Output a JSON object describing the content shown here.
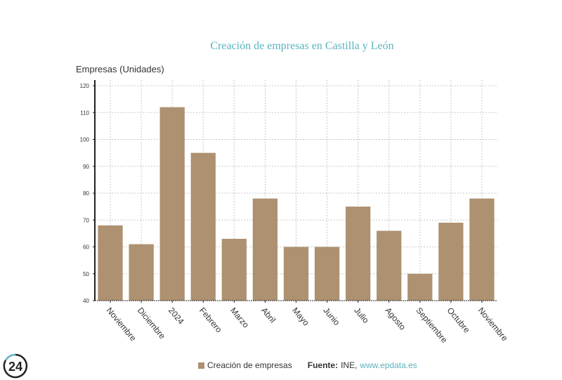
{
  "chart_data": {
    "type": "bar",
    "title": "Creación de empresas en Castilla y León",
    "xlabel": "",
    "ylabel": "Empresas (Unidades)",
    "ylim": [
      40,
      120
    ],
    "yticks": [
      40,
      50,
      60,
      70,
      80,
      90,
      100,
      110,
      120
    ],
    "grid": true,
    "categories": [
      "Noviembre",
      "Diciembre",
      "2024",
      "Febrero",
      "Marzo",
      "Abril",
      "Mayo",
      "Junio",
      "Julio",
      "Agosto",
      "Septiembre",
      "Octubre",
      "Noviembre"
    ],
    "series": [
      {
        "name": "Creación de empresas",
        "color": "#ad9170",
        "values": [
          68,
          61,
          112,
          95,
          63,
          78,
          60,
          60,
          75,
          66,
          50,
          69,
          78
        ]
      }
    ],
    "legend_position": "bottom"
  },
  "legend": {
    "series_label": "Creación de empresas",
    "source_label": "Fuente:",
    "source_text": "INE,",
    "source_link": "www.epdata.es"
  },
  "logo": {
    "text": "24"
  },
  "colors": {
    "bar": "#ad9170",
    "title": "#5bb3c0",
    "link": "#5bb3c0"
  }
}
